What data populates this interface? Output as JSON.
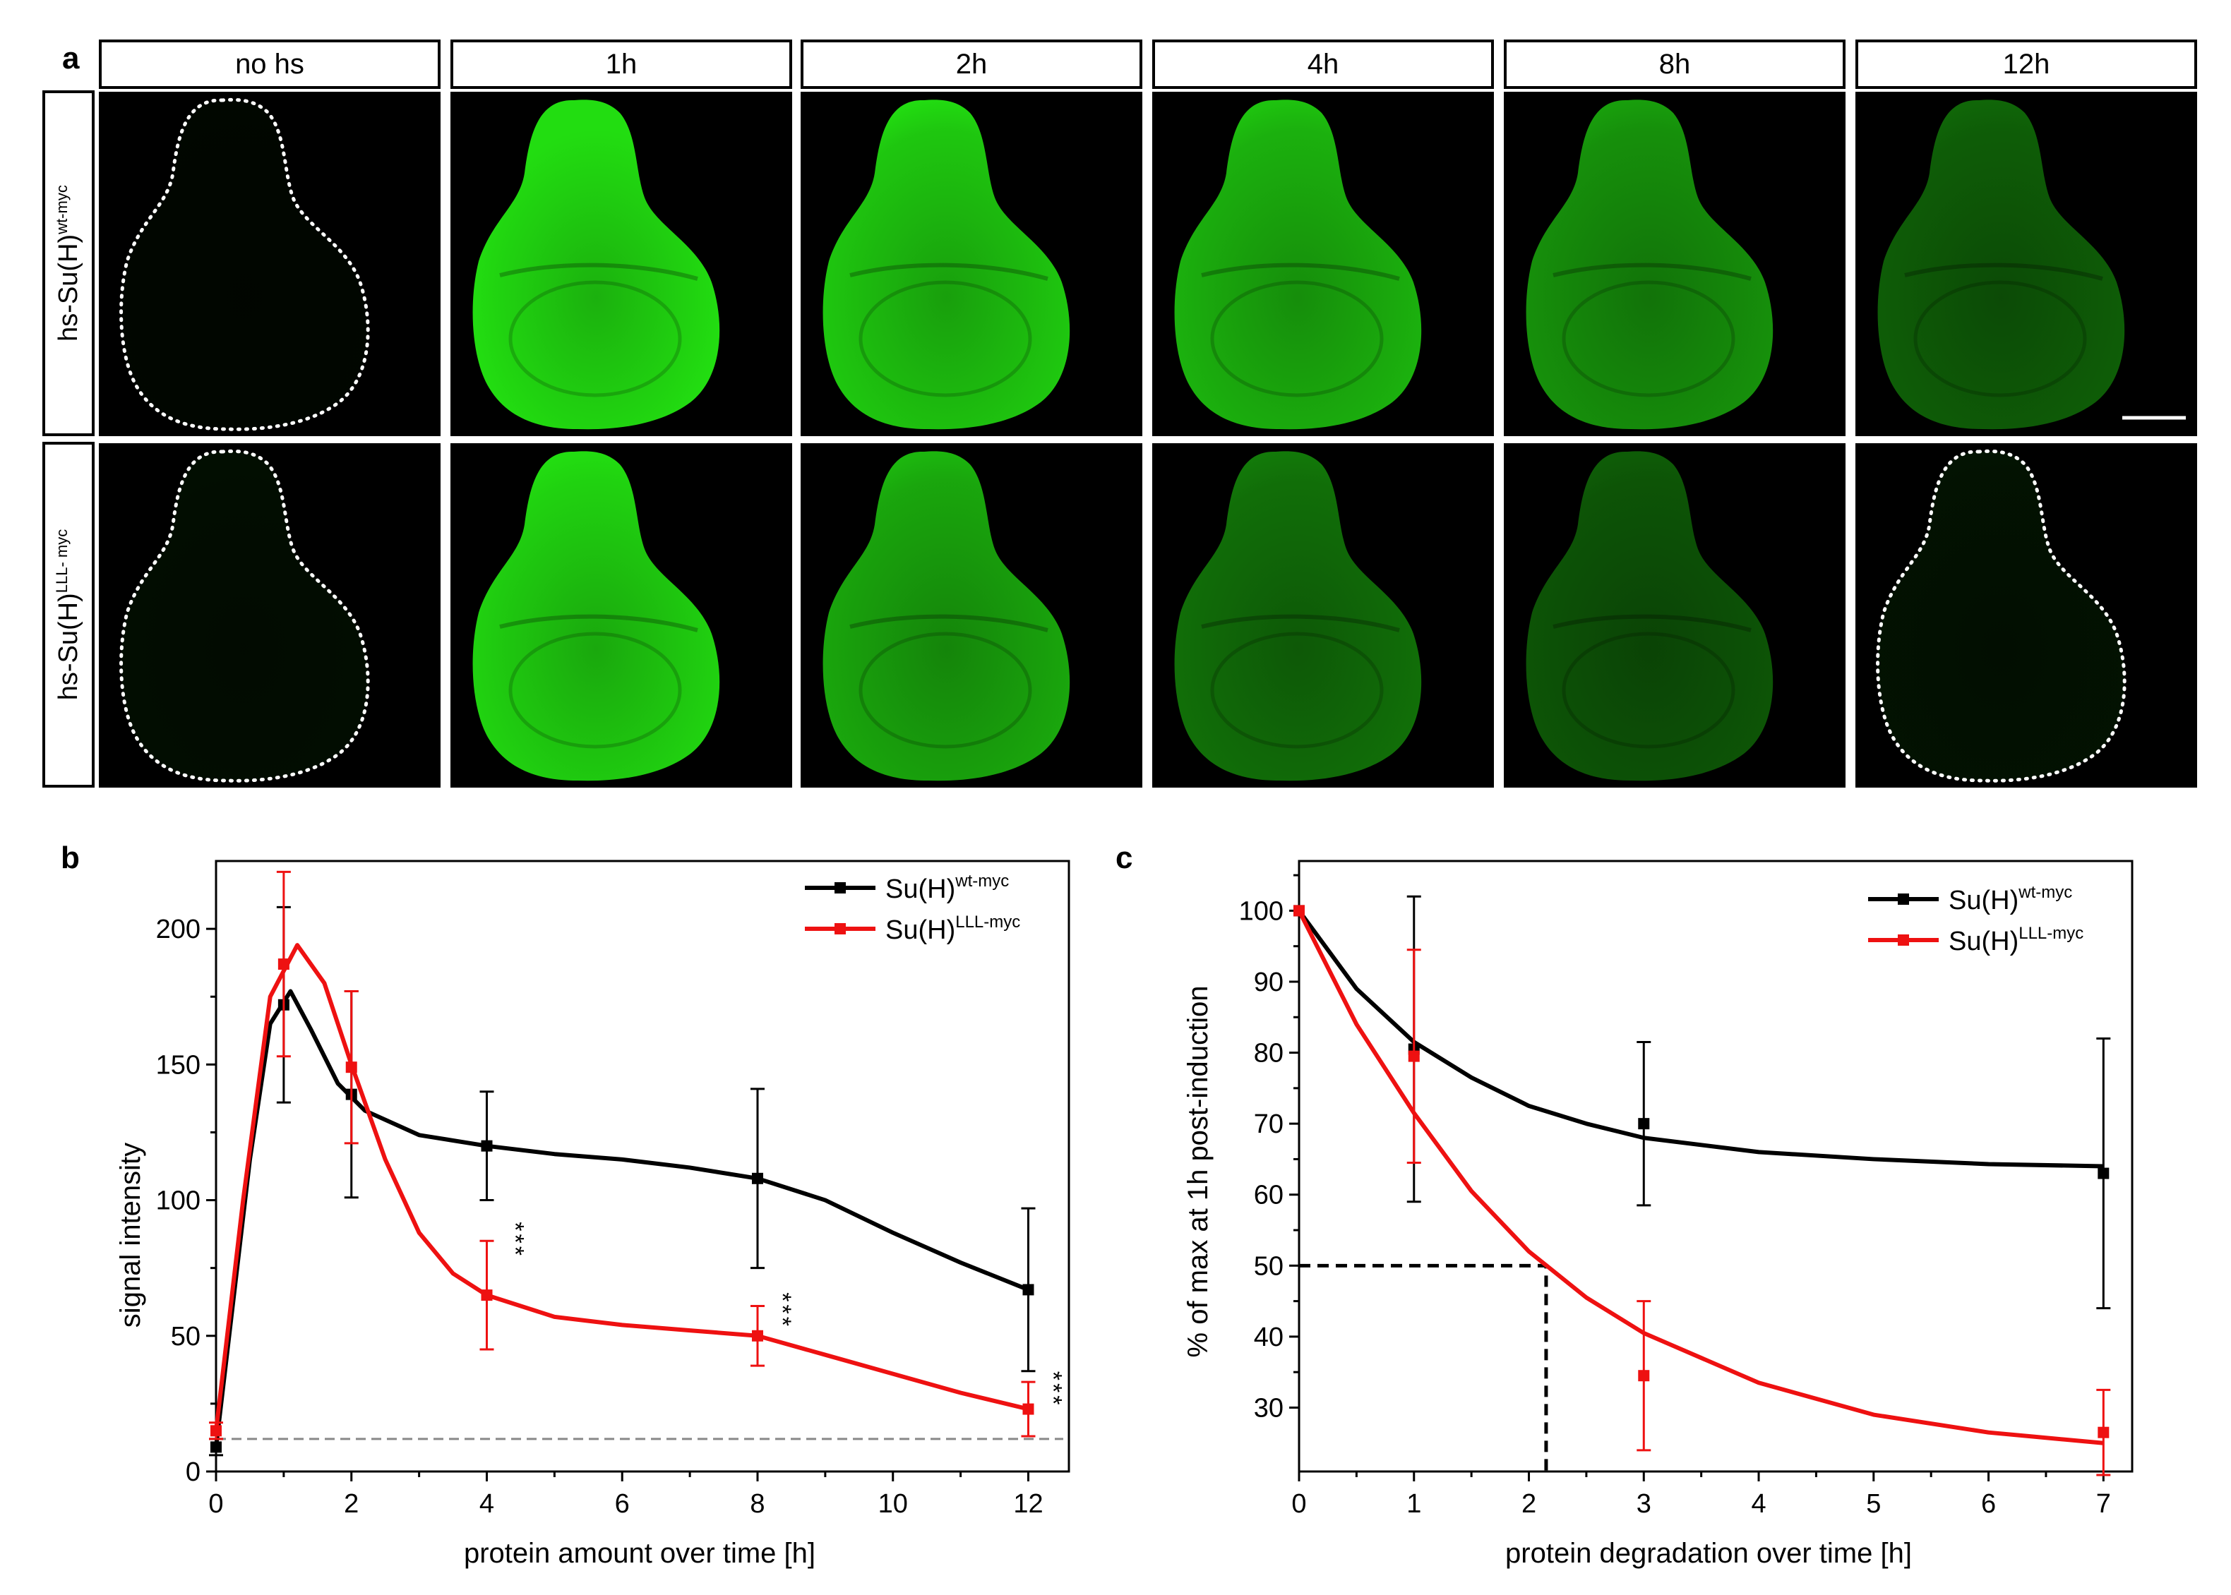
{
  "panel_a": {
    "letter": "a",
    "columns": [
      "no hs",
      "1h",
      "2h",
      "4h",
      "8h",
      "12h"
    ],
    "rows": [
      {
        "label_main": "hs-Su(H)",
        "label_sup": "wt-myc",
        "intensity": [
          0.03,
          1.0,
          0.9,
          0.8,
          0.65,
          0.42
        ],
        "outlined": [
          true,
          false,
          false,
          false,
          false,
          false
        ]
      },
      {
        "label_main": "hs-Su(H)",
        "label_sup": "LLL- myc",
        "intensity": [
          0.06,
          0.95,
          0.75,
          0.5,
          0.38,
          0.08
        ],
        "outlined": [
          true,
          false,
          false,
          false,
          false,
          true
        ]
      }
    ],
    "scale_bar": true,
    "colors": {
      "signal": "#22dd11",
      "background": "#000000",
      "outline": "#ffffff"
    }
  },
  "chart_data": [
    {
      "panel": "b",
      "type": "line",
      "xlabel": "protein amount over time [h]",
      "ylabel": "signal intensity",
      "xlim": [
        0,
        12.6
      ],
      "ylim": [
        0,
        225
      ],
      "xticks": [
        0,
        2,
        4,
        6,
        8,
        10,
        12
      ],
      "yticks": [
        0,
        50,
        100,
        150,
        200
      ],
      "baseline": 12,
      "legend_position": "top-right",
      "series": [
        {
          "name_main": "Su(H)",
          "name_sup": "wt-myc",
          "color": "#000000",
          "x": [
            0,
            1,
            2,
            4,
            8,
            12
          ],
          "y": [
            9,
            172,
            139,
            120,
            108,
            67
          ],
          "err": [
            3,
            36,
            38,
            20,
            33,
            30
          ],
          "curve": [
            [
              0,
              9
            ],
            [
              0.5,
              115
            ],
            [
              0.8,
              165
            ],
            [
              1.1,
              177
            ],
            [
              1.4,
              163
            ],
            [
              1.8,
              143
            ],
            [
              2.2,
              133
            ],
            [
              3,
              124
            ],
            [
              4,
              120
            ],
            [
              5,
              117
            ],
            [
              6,
              115
            ],
            [
              7,
              112
            ],
            [
              8,
              108
            ],
            [
              9,
              100
            ],
            [
              10,
              88
            ],
            [
              11,
              77
            ],
            [
              12,
              67
            ]
          ]
        },
        {
          "name_main": "Su(H)",
          "name_sup": "LLL-myc",
          "color": "#ee1111",
          "x": [
            0,
            1,
            2,
            4,
            8,
            12
          ],
          "y": [
            15,
            187,
            149,
            65,
            50,
            23
          ],
          "err": [
            3,
            34,
            28,
            20,
            11,
            10
          ],
          "curve": [
            [
              0,
              15
            ],
            [
              0.4,
              100
            ],
            [
              0.8,
              175
            ],
            [
              1.2,
              194
            ],
            [
              1.6,
              180
            ],
            [
              2,
              150
            ],
            [
              2.5,
              115
            ],
            [
              3,
              88
            ],
            [
              3.5,
              73
            ],
            [
              4,
              65
            ],
            [
              5,
              57
            ],
            [
              6,
              54
            ],
            [
              7,
              52
            ],
            [
              8,
              50
            ],
            [
              9,
              43
            ],
            [
              10,
              36
            ],
            [
              11,
              29
            ],
            [
              12,
              23
            ]
          ]
        }
      ],
      "annotations": [
        {
          "text": "***",
          "x": 4.3,
          "y": 92
        },
        {
          "text": "***",
          "x": 8.25,
          "y": 66
        },
        {
          "text": "***",
          "x": 12.25,
          "y": 37
        }
      ]
    },
    {
      "panel": "c",
      "type": "line",
      "xlabel": "protein degradation over time [h]",
      "ylabel": "% of max at 1h post-induction",
      "xlim": [
        0,
        7.25
      ],
      "ylim": [
        21,
        107
      ],
      "xticks": [
        0,
        1,
        2,
        3,
        4,
        5,
        6,
        7
      ],
      "yticks": [
        30,
        40,
        50,
        60,
        70,
        80,
        90,
        100
      ],
      "half_life_marker": {
        "x": 2.15,
        "y": 50
      },
      "legend_position": "top-right",
      "series": [
        {
          "name_main": "Su(H)",
          "name_sup": "wt-myc",
          "color": "#000000",
          "x": [
            0,
            1,
            3,
            7
          ],
          "y": [
            100,
            80.5,
            70,
            63
          ],
          "err": [
            0,
            21.5,
            11.5,
            19
          ],
          "curve": [
            [
              0,
              100
            ],
            [
              0.5,
              89
            ],
            [
              1,
              81.5
            ],
            [
              1.5,
              76.5
            ],
            [
              2,
              72.5
            ],
            [
              2.5,
              70
            ],
            [
              3,
              68
            ],
            [
              4,
              66
            ],
            [
              5,
              65
            ],
            [
              6,
              64.3
            ],
            [
              7,
              64
            ]
          ]
        },
        {
          "name_main": "Su(H)",
          "name_sup": "LLL-myc",
          "color": "#ee1111",
          "x": [
            0,
            1,
            3,
            7
          ],
          "y": [
            100,
            79.5,
            34.5,
            26.5
          ],
          "err": [
            0,
            15,
            10.5,
            6
          ],
          "curve": [
            [
              0,
              100
            ],
            [
              0.5,
              84
            ],
            [
              1,
              71.5
            ],
            [
              1.5,
              60.5
            ],
            [
              2,
              52
            ],
            [
              2.5,
              45.5
            ],
            [
              3,
              40.5
            ],
            [
              4,
              33.5
            ],
            [
              5,
              29
            ],
            [
              6,
              26.5
            ],
            [
              7,
              25
            ]
          ]
        }
      ]
    }
  ]
}
